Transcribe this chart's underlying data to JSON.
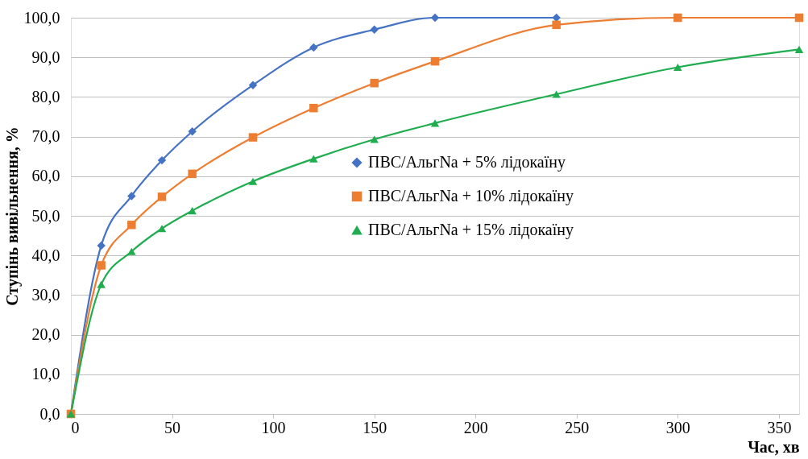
{
  "chart_data": {
    "type": "line",
    "xlabel": "Час, хв",
    "ylabel": "Ступінь вивільнення, %",
    "series": [
      {
        "name": "ПВС/АльгNa + 5% лідокаїну",
        "color": "#4472c4",
        "marker": "diamond",
        "x": [
          0,
          15,
          30,
          45,
          60,
          90,
          120,
          150,
          180,
          240
        ],
        "values": [
          0,
          42.5,
          55,
          64,
          71.3,
          83,
          92.5,
          97,
          100,
          100
        ]
      },
      {
        "name": "ПВС/АльгNa + 10% лідокаїну",
        "color": "#ed7d31",
        "marker": "square",
        "x": [
          0,
          15,
          30,
          45,
          60,
          90,
          120,
          150,
          180,
          240,
          300,
          360
        ],
        "values": [
          0,
          37.5,
          47.7,
          54.8,
          60.6,
          69.8,
          77.2,
          83.5,
          89,
          98.2,
          100,
          100
        ]
      },
      {
        "name": "ПВС/АльгNa + 15% лідокаїну",
        "color": "#1fad4f",
        "marker": "triangle",
        "x": [
          0,
          15,
          30,
          45,
          60,
          90,
          120,
          150,
          180,
          240,
          300,
          360
        ],
        "values": [
          0,
          32.7,
          41,
          46.8,
          51.3,
          58.7,
          64.4,
          69.3,
          73.4,
          80.7,
          87.5,
          92
        ]
      }
    ],
    "xlim": [
      0,
      360
    ],
    "xticks": [
      0,
      50,
      100,
      150,
      200,
      250,
      300,
      350
    ],
    "ylim": [
      0,
      100
    ],
    "yticks": [
      {
        "value": 0,
        "label": "0,0"
      },
      {
        "value": 10,
        "label": "10,0"
      },
      {
        "value": 20,
        "label": "20,0"
      },
      {
        "value": 30,
        "label": "30,0"
      },
      {
        "value": 40,
        "label": "40,0"
      },
      {
        "value": 50,
        "label": "50,0"
      },
      {
        "value": 60,
        "label": "60,0"
      },
      {
        "value": 70,
        "label": "70,0"
      },
      {
        "value": 80,
        "label": "80,0"
      },
      {
        "value": 90,
        "label": "90,0"
      },
      {
        "value": 100,
        "label": "100,0"
      }
    ],
    "grid": "y",
    "legend": "right"
  }
}
